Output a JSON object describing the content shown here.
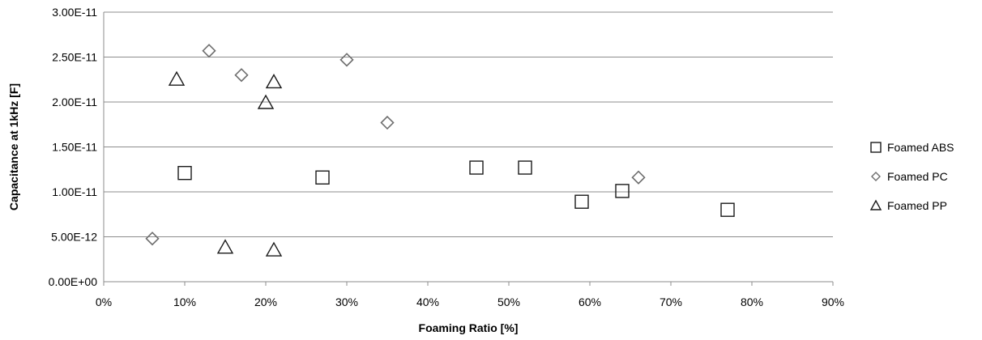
{
  "chart_data": {
    "type": "scatter",
    "xlabel": "Foaming Ratio [%]",
    "ylabel": "Capacitance at 1kHz [F]",
    "xlim": [
      0,
      0.9
    ],
    "ylim": [
      0,
      3e-11
    ],
    "x_ticks": [
      "0%",
      "10%",
      "20%",
      "30%",
      "40%",
      "50%",
      "60%",
      "70%",
      "80%",
      "90%"
    ],
    "y_ticks": [
      "0.00E+00",
      "5.00E-12",
      "1.00E-11",
      "1.50E-11",
      "2.00E-11",
      "2.50E-11",
      "3.00E-11"
    ],
    "grid": "horizontal",
    "legend_position": "right",
    "series": [
      {
        "name": "Foamed ABS",
        "marker": "square",
        "points": [
          [
            0.1,
            1.21e-11
          ],
          [
            0.27,
            1.16e-11
          ],
          [
            0.46,
            1.27e-11
          ],
          [
            0.52,
            1.27e-11
          ],
          [
            0.59,
            8.9e-12
          ],
          [
            0.64,
            1.01e-11
          ],
          [
            0.77,
            8e-12
          ]
        ]
      },
      {
        "name": "Foamed PC",
        "marker": "diamond",
        "points": [
          [
            0.06,
            4.8e-12
          ],
          [
            0.13,
            2.57e-11
          ],
          [
            0.17,
            2.3e-11
          ],
          [
            0.3,
            2.47e-11
          ],
          [
            0.35,
            1.77e-11
          ],
          [
            0.66,
            1.16e-11
          ]
        ]
      },
      {
        "name": "Foamed PP",
        "marker": "triangle",
        "points": [
          [
            0.09,
            2.26e-11
          ],
          [
            0.15,
            3.9e-12
          ],
          [
            0.2,
            2e-11
          ],
          [
            0.21,
            2.23e-11
          ],
          [
            0.21,
            3.6e-12
          ]
        ]
      }
    ]
  }
}
